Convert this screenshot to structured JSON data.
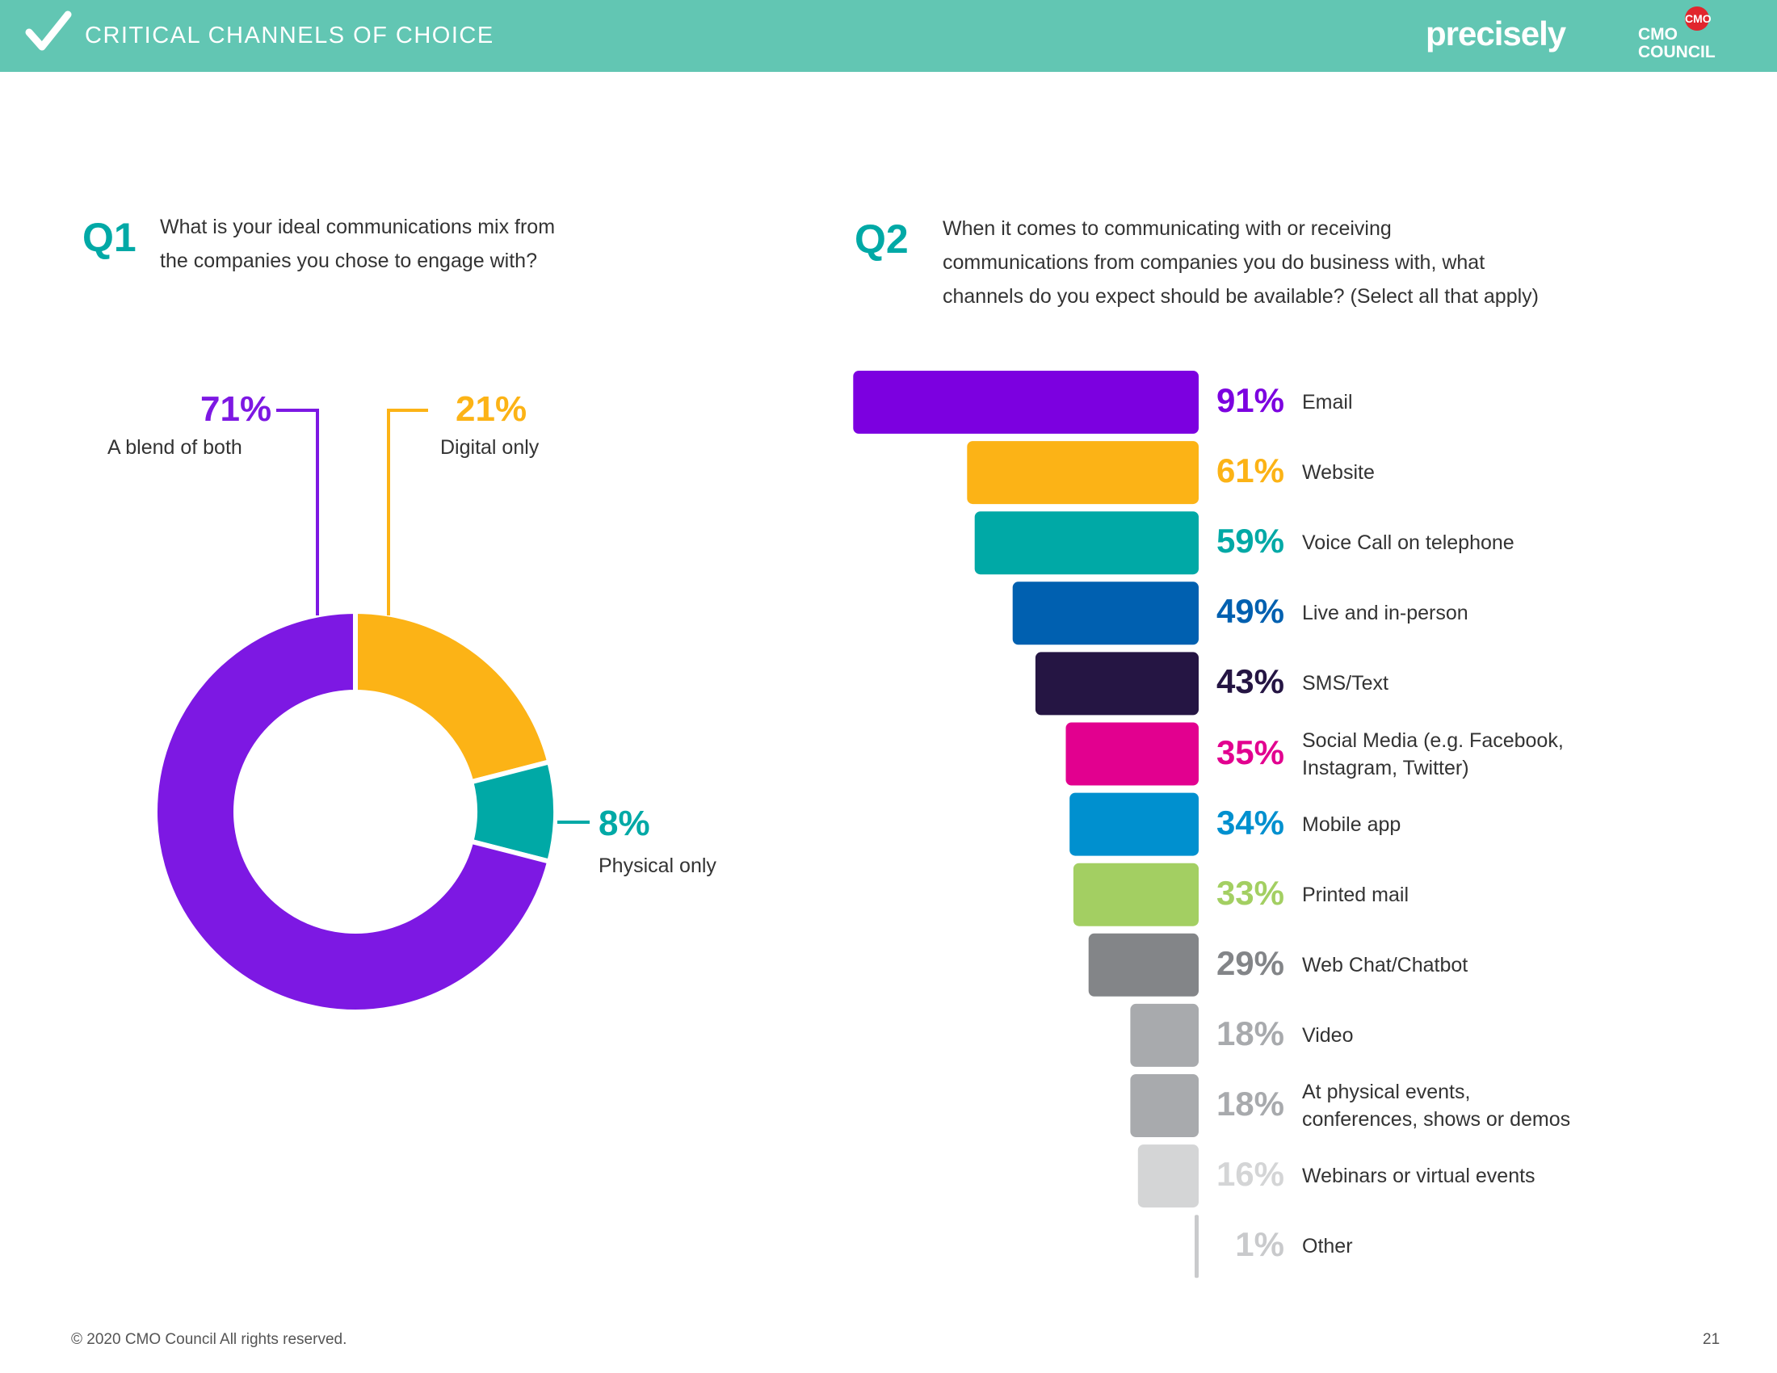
{
  "header": {
    "title": "CRITICAL CHANNELS OF CHOICE",
    "brand": "precisely",
    "cmo_line1": "CMO",
    "cmo_line2": "COUNCIL",
    "cmo_badge": "CMO",
    "bg_color": "#62c6b3"
  },
  "q1": {
    "label": "Q1",
    "text_line1": "What is your ideal communications mix from",
    "text_line2": "the companies you chose to engage with?"
  },
  "q2": {
    "label": "Q2",
    "text_line1": "When it comes to communicating with or receiving",
    "text_line2": "communications from companies you do business with, what",
    "text_line3": "channels do you expect should be available? (Select all that apply)"
  },
  "chart_data": [
    {
      "type": "pie",
      "variant": "donut",
      "categories": [
        "A blend of both",
        "Digital only",
        "Physical only"
      ],
      "values": [
        71,
        21,
        8
      ],
      "value_labels": [
        "71%",
        "21%",
        "8%"
      ],
      "colors": [
        "#7d18e3",
        "#fcb316",
        "#00a9a6"
      ]
    },
    {
      "type": "bar",
      "orientation": "horizontal",
      "categories": [
        "Email",
        "Website",
        "Voice Call on telephone",
        "Live and in-person",
        "SMS/Text",
        "Social Media (e.g. Facebook,\nInstagram, Twitter)",
        "Mobile app",
        "Printed mail",
        "Web Chat/Chatbot",
        "Video",
        "At physical events,\nconferences, shows or demos",
        "Webinars or virtual events",
        "Other"
      ],
      "values": [
        91,
        61,
        59,
        49,
        43,
        35,
        34,
        33,
        29,
        18,
        18,
        16,
        1
      ],
      "value_labels": [
        "91%",
        "61%",
        "59%",
        "49%",
        "43%",
        "35%",
        "34%",
        "33%",
        "29%",
        "18%",
        "18%",
        "16%",
        "1%"
      ],
      "colors": [
        "#7c00e0",
        "#fcb316",
        "#00a9a6",
        "#0060b0",
        "#251543",
        "#e2008f",
        "#0090cf",
        "#a3cf62",
        "#838588",
        "#a8aaad",
        "#a8aaad",
        "#d4d5d6",
        "#c9cacc"
      ]
    }
  ],
  "footer": {
    "copyright": "© 2020 CMO Council  All rights reserved.",
    "page": "21"
  }
}
